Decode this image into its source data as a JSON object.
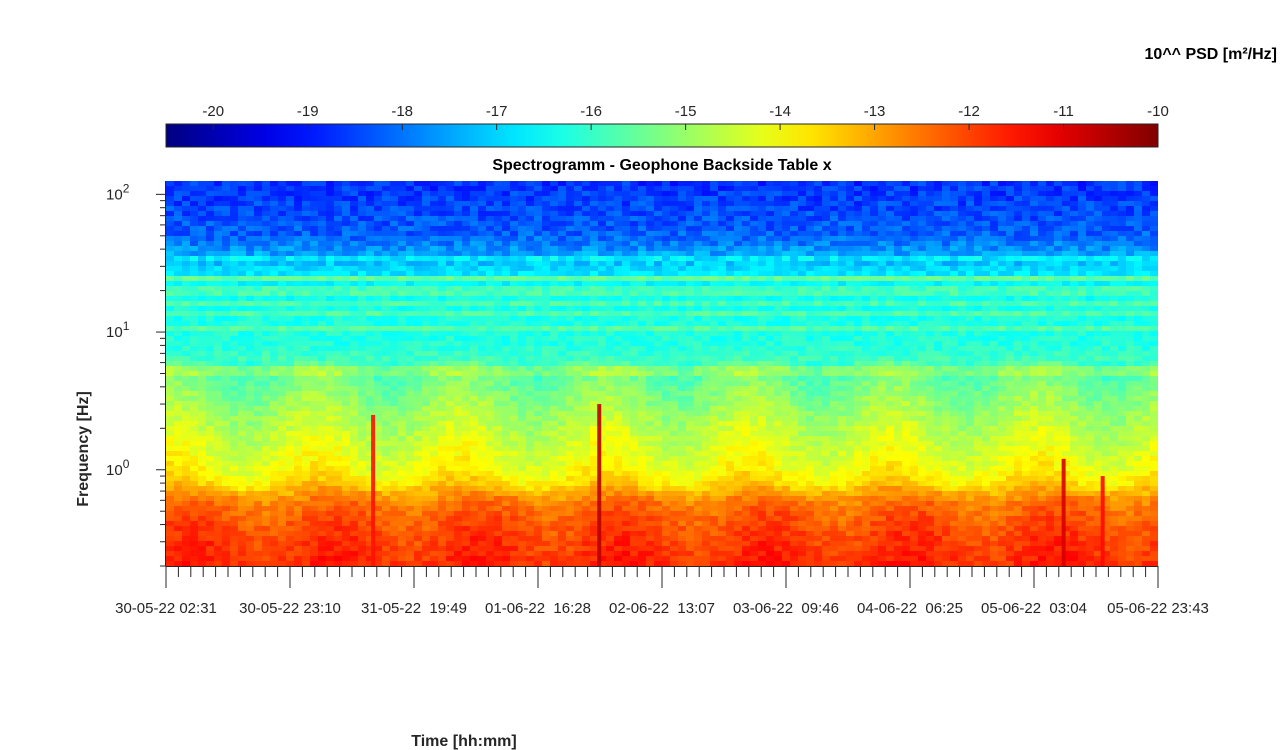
{
  "chart_data": {
    "type": "heatmap",
    "title": "Spectrogramm - Geophone Backside Table x",
    "xlabel": "Time [hh:mm]",
    "ylabel": "Frequency [Hz]",
    "colorbar_label": "10^^ PSD [m²/Hz]",
    "colormap": "jet",
    "colorbar_ticks": [
      -20,
      -19,
      -18,
      -17,
      -16,
      -15,
      -14,
      -13,
      -12,
      -11,
      -10
    ],
    "color_range": [
      -20.5,
      -10
    ],
    "yscale": "log",
    "ylim": [
      0.2,
      125
    ],
    "y_ticks": [
      {
        "value": 1,
        "base": "10",
        "exp": "0"
      },
      {
        "value": 10,
        "base": "10",
        "exp": "1"
      },
      {
        "value": 100,
        "base": "10",
        "exp": "2"
      }
    ],
    "x_tick_labels": [
      "30-05-22 02:31",
      "30-05-22 23:10",
      "31-05-22  19:49",
      "01-06-22  16:28",
      "02-06-22  13:07",
      "03-06-22  09:46",
      "04-06-22  06:25",
      "05-06-22  03:04",
      "05-06-22 23:43"
    ],
    "x_tick_times": [
      "2022-05-30 02:31",
      "2022-05-30 23:10",
      "2022-05-31 19:49",
      "2022-06-01 16:28",
      "2022-06-02 13:07",
      "2022-06-03 09:46",
      "2022-06-04 06:25",
      "2022-06-05 03:04",
      "2022-06-05 23:43"
    ],
    "xlim": [
      "2022-05-30 02:31",
      "2022-06-05 23:43"
    ],
    "psd_profile": [
      {
        "f": 0.2,
        "log10_psd": -11.7
      },
      {
        "f": 0.3,
        "log10_psd": -11.9
      },
      {
        "f": 0.45,
        "log10_psd": -12.2
      },
      {
        "f": 0.6,
        "log10_psd": -12.6
      },
      {
        "f": 0.8,
        "log10_psd": -13.6
      },
      {
        "f": 1.0,
        "log10_psd": -14.0
      },
      {
        "f": 2.0,
        "log10_psd": -14.6
      },
      {
        "f": 4.0,
        "log10_psd": -15.3
      },
      {
        "f": 8.0,
        "log10_psd": -16.2
      },
      {
        "f": 20,
        "log10_psd": -16.4
      },
      {
        "f": 30,
        "log10_psd": -17.0
      },
      {
        "f": 50,
        "log10_psd": -18.2
      },
      {
        "f": 125,
        "log10_psd": -18.7
      }
    ],
    "transients": [
      {
        "time": "2022-05-31 13:00",
        "fmax": 2.5,
        "log10_psd": -11.5
      },
      {
        "time": "2022-06-02 02:40",
        "fmax": 3.0,
        "log10_psd": -10.6
      },
      {
        "time": "2022-06-05 08:00",
        "fmax": 1.2,
        "log10_psd": -10.9
      },
      {
        "time": "2022-06-05 14:30",
        "fmax": 0.9,
        "log10_psd": -11.4
      }
    ],
    "grid": false
  }
}
